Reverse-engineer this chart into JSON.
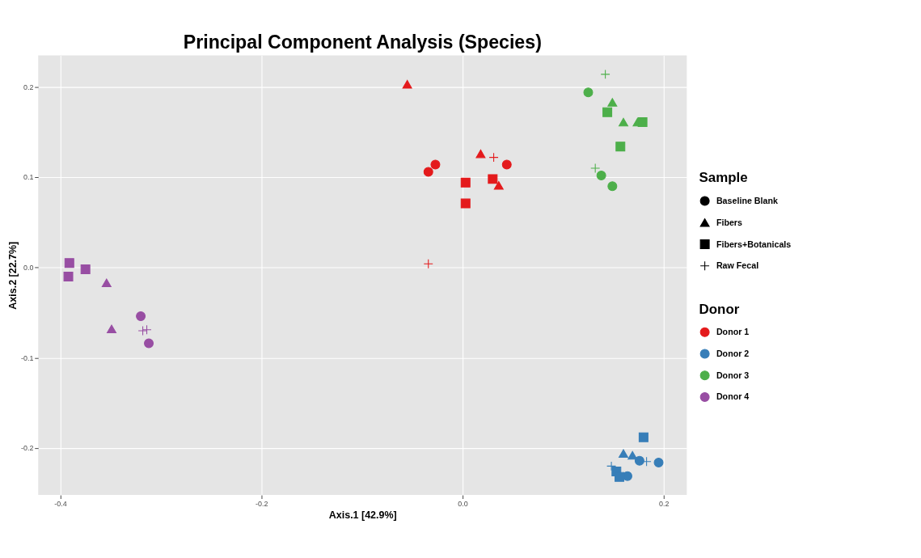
{
  "chart_data": {
    "type": "scatter",
    "title": "Principal Component Analysis (Species)",
    "xlabel": "Axis.1   [42.9%]",
    "ylabel": "Axis.2   [22.7%]",
    "xlim": [
      -0.422,
      0.223
    ],
    "ylim": [
      -0.252,
      0.235
    ],
    "xticks": [
      -0.4,
      -0.2,
      {
        "value": 0,
        "label": "0.0"
      },
      0.2
    ],
    "yticks": [
      -0.2,
      -0.1,
      {
        "value": 0,
        "label": "0.0"
      },
      0.1,
      0.2
    ],
    "grid": true,
    "legend": "right",
    "legend_title": [
      "Sample",
      "Donor"
    ],
    "series": [
      {
        "name": "Baseline Blank",
        "color": "#000000",
        "marker": "circle"
      },
      {
        "name": "Fibers",
        "color": "#000000",
        "marker": "triangle"
      },
      {
        "name": "Fibers+Botanicals",
        "color": "#000000",
        "marker": "square"
      },
      {
        "name": "Raw Fecal",
        "color": "#000000",
        "marker": "cross"
      },
      {
        "name": "Donor 1",
        "color": "#e41a1c",
        "marker": "circle",
        "x": [
          -0.034,
          -0.027,
          0.044
        ],
        "values": [
          0.106,
          0.114,
          0.114
        ]
      },
      {
        "color": "#e41a1c",
        "marker": "triangle",
        "x": [
          -0.055,
          0.018,
          0.036
        ],
        "values": [
          0.203,
          0.126,
          0.091
        ]
      },
      {
        "color": "#e41a1c",
        "marker": "square",
        "x": [
          0.003,
          0.003,
          0.03
        ],
        "values": [
          0.094,
          0.071,
          0.098
        ]
      },
      {
        "color": "#e41a1c",
        "marker": "cross",
        "x": [
          0.031,
          -0.034
        ],
        "values": [
          0.122,
          0.004
        ]
      },
      {
        "name": "Donor 2",
        "color": "#377eb8",
        "marker": "circle",
        "x": [
          0.176,
          0.195,
          0.164
        ],
        "values": [
          -0.214,
          -0.216,
          -0.231
        ]
      },
      {
        "color": "#377eb8",
        "marker": "triangle",
        "x": [
          0.16,
          0.169
        ],
        "values": [
          -0.206,
          -0.208
        ]
      },
      {
        "color": "#377eb8",
        "marker": "square",
        "x": [
          0.18,
          0.153,
          0.156
        ],
        "values": [
          -0.188,
          -0.226,
          -0.232
        ]
      },
      {
        "color": "#377eb8",
        "marker": "cross",
        "x": [
          0.183,
          0.148
        ],
        "values": [
          -0.215,
          -0.22
        ]
      },
      {
        "name": "Donor 3",
        "color": "#4daf4a",
        "marker": "circle",
        "x": [
          0.125,
          0.138,
          0.149
        ],
        "values": [
          0.194,
          0.102,
          0.09
        ]
      },
      {
        "color": "#4daf4a",
        "marker": "triangle",
        "x": [
          0.149,
          0.16,
          0.174
        ],
        "values": [
          0.183,
          0.161,
          0.161
        ]
      },
      {
        "color": "#4daf4a",
        "marker": "square",
        "x": [
          0.144,
          0.179,
          0.157
        ],
        "values": [
          0.172,
          0.161,
          0.134
        ]
      },
      {
        "color": "#4daf4a",
        "marker": "cross",
        "x": [
          0.142,
          0.132
        ],
        "values": [
          0.214,
          0.11
        ]
      },
      {
        "name": "Donor 4",
        "color": "#984ea3",
        "marker": "circle",
        "x": [
          -0.32,
          -0.312
        ],
        "values": [
          -0.054,
          -0.084
        ]
      },
      {
        "color": "#984ea3",
        "marker": "triangle",
        "x": [
          -0.354,
          -0.349
        ],
        "values": [
          -0.017,
          -0.068
        ]
      },
      {
        "color": "#984ea3",
        "marker": "square",
        "x": [
          -0.391,
          -0.392,
          -0.375
        ],
        "values": [
          0.005,
          -0.01,
          -0.002
        ]
      },
      {
        "color": "#984ea3",
        "marker": "cross",
        "x": [
          -0.318,
          -0.314
        ],
        "values": [
          -0.07,
          -0.069
        ]
      }
    ]
  }
}
